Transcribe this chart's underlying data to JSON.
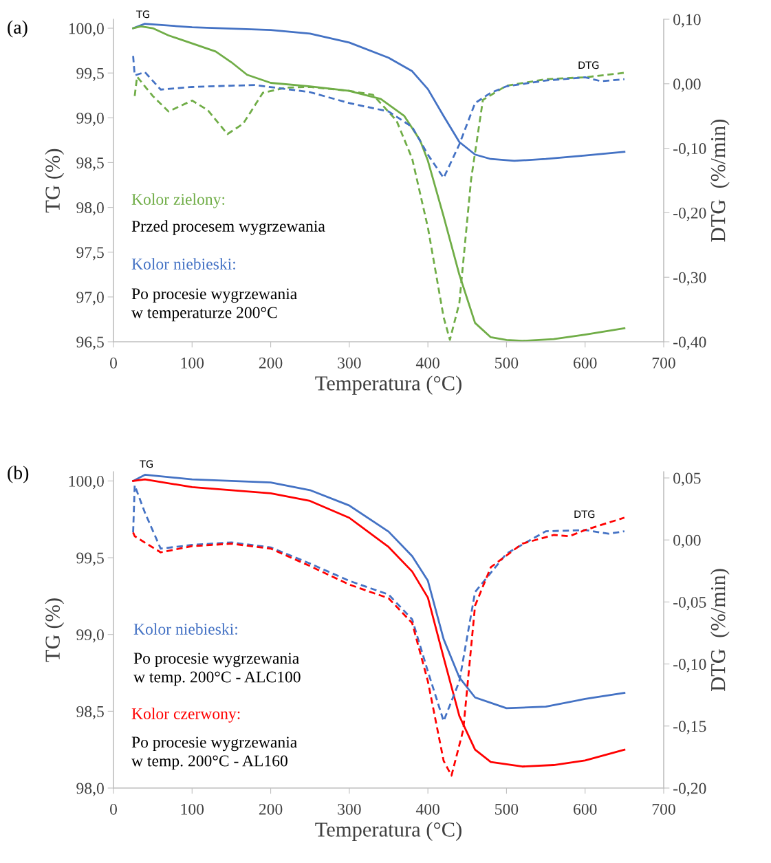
{
  "chart_data": [
    {
      "type": "line",
      "xlabel": "Temperatura (°C)",
      "ylabel": "TG (%)",
      "y2label": "DTG  (%/min)",
      "xlim": [
        0,
        700
      ],
      "xticks": [
        0,
        100,
        200,
        300,
        400,
        500,
        600,
        700
      ],
      "ylim": [
        96.5,
        100.1
      ],
      "yticks": [
        {
          "value": 96.5,
          "label": "96,5"
        },
        {
          "value": 97.0,
          "label": "97,0"
        },
        {
          "value": 97.5,
          "label": "97,5"
        },
        {
          "value": 98.0,
          "label": "98,0"
        },
        {
          "value": 98.5,
          "label": "98,5"
        },
        {
          "value": 99.0,
          "label": "99,0"
        },
        {
          "value": 99.5,
          "label": "99,5"
        },
        {
          "value": 100.0,
          "label": "100,0"
        }
      ],
      "y2lim": [
        -0.4,
        0.1
      ],
      "y2ticks": [
        {
          "value": -0.4,
          "label": "-0,40"
        },
        {
          "value": -0.3,
          "label": "-0,30"
        },
        {
          "value": -0.2,
          "label": "-0,20"
        },
        {
          "value": -0.1,
          "label": "-0,10"
        },
        {
          "value": 0.0,
          "label": "0,00"
        },
        {
          "value": 0.1,
          "label": "0,10"
        }
      ],
      "grid": false,
      "legend": false,
      "annotations": [
        "(a)",
        "TG",
        "DTG",
        "Kolor zielony:",
        "Przed procesem wygrzewania",
        "Kolor niebieski:",
        "Po procesie wygrzewania\nw temperaturze 200°C"
      ],
      "series": [
        {
          "color": "#4472c4",
          "line_style": "solid",
          "x": [
            25,
            40,
            100,
            200,
            250,
            300,
            350,
            380,
            400,
            420,
            440,
            460,
            480,
            510,
            550,
            600,
            650
          ],
          "values": [
            100.0,
            100.05,
            100.01,
            99.98,
            99.94,
            99.84,
            99.67,
            99.52,
            99.32,
            99.02,
            98.73,
            98.59,
            98.54,
            98.52,
            98.54,
            98.58,
            98.62
          ]
        },
        {
          "color": "#70ad47",
          "line_style": "solid",
          "x": [
            25,
            35,
            50,
            70,
            100,
            130,
            150,
            170,
            200,
            250,
            300,
            340,
            370,
            390,
            400,
            420,
            440,
            460,
            480,
            500,
            520,
            560,
            600,
            650
          ],
          "values": [
            100.0,
            100.02,
            100.0,
            99.92,
            99.83,
            99.74,
            99.62,
            99.48,
            99.39,
            99.35,
            99.3,
            99.21,
            99.02,
            98.75,
            98.52,
            97.9,
            97.25,
            96.71,
            96.55,
            96.52,
            96.51,
            96.53,
            96.58,
            96.65
          ]
        },
        {
          "color": "#70ad47",
          "line_style": "dashed",
          "axis": "y2",
          "x": [
            27,
            30,
            50,
            70,
            100,
            120,
            145,
            165,
            190,
            220,
            250,
            300,
            330,
            360,
            380,
            400,
            420,
            428,
            440,
            455,
            470,
            500,
            550,
            600,
            650
          ],
          "values": [
            -0.019,
            0.011,
            -0.019,
            -0.043,
            -0.026,
            -0.041,
            -0.078,
            -0.062,
            -0.014,
            -0.006,
            -0.005,
            -0.011,
            -0.017,
            -0.057,
            -0.116,
            -0.223,
            -0.362,
            -0.397,
            -0.34,
            -0.148,
            -0.025,
            -0.003,
            0.007,
            0.01,
            0.017
          ]
        },
        {
          "color": "#4472c4",
          "line_style": "dashed",
          "axis": "y2",
          "x": [
            25,
            27,
            40,
            60,
            100,
            150,
            180,
            250,
            300,
            350,
            380,
            400,
            420,
            440,
            460,
            480,
            500,
            550,
            600,
            620,
            650
          ],
          "values": [
            0.043,
            0.013,
            0.018,
            -0.009,
            -0.005,
            -0.003,
            -0.002,
            -0.013,
            -0.03,
            -0.043,
            -0.067,
            -0.11,
            -0.146,
            -0.094,
            -0.03,
            -0.014,
            -0.004,
            0.005,
            0.01,
            0.004,
            0.007
          ]
        }
      ]
    },
    {
      "type": "line",
      "xlabel": "Temperatura (°C)",
      "ylabel": "TG (%)",
      "y2label": "DTG  (%/min)",
      "xlim": [
        0,
        700
      ],
      "xticks": [
        0,
        100,
        200,
        300,
        400,
        500,
        600,
        700
      ],
      "ylim": [
        98.0,
        100.06
      ],
      "yticks": [
        {
          "value": 98.0,
          "label": "98,0"
        },
        {
          "value": 98.5,
          "label": "98,5"
        },
        {
          "value": 99.0,
          "label": "99,0"
        },
        {
          "value": 99.5,
          "label": "99,5"
        },
        {
          "value": 100.0,
          "label": "100,0"
        }
      ],
      "y2lim": [
        -0.2,
        0.055
      ],
      "y2ticks": [
        {
          "value": -0.2,
          "label": "-0,20"
        },
        {
          "value": -0.15,
          "label": "-0,15"
        },
        {
          "value": -0.1,
          "label": "-0,10"
        },
        {
          "value": -0.05,
          "label": "-0,05"
        },
        {
          "value": 0.0,
          "label": "0,00"
        },
        {
          "value": 0.05,
          "label": "0,05"
        }
      ],
      "grid": false,
      "legend": false,
      "annotations": [
        "(b)",
        "TG",
        "DTG",
        "Kolor niebieski:",
        "Po procesie wygrzewania\nw temp. 200°C - ALC100",
        "Kolor czerwony:",
        "Po procesie wygrzewania\nw temp. 200°C - AL160"
      ],
      "series": [
        {
          "color": "#4472c4",
          "line_style": "solid",
          "x": [
            25,
            40,
            100,
            200,
            250,
            300,
            350,
            380,
            400,
            420,
            440,
            460,
            500,
            550,
            600,
            650
          ],
          "values": [
            100.0,
            100.04,
            100.01,
            99.99,
            99.94,
            99.84,
            99.67,
            99.51,
            99.35,
            98.97,
            98.72,
            98.59,
            98.52,
            98.53,
            98.58,
            98.62
          ]
        },
        {
          "color": "#ff0000",
          "line_style": "solid",
          "x": [
            25,
            40,
            100,
            150,
            200,
            250,
            300,
            350,
            380,
            400,
            420,
            440,
            460,
            480,
            520,
            560,
            600,
            650
          ],
          "values": [
            100.0,
            100.01,
            99.96,
            99.94,
            99.92,
            99.87,
            99.76,
            99.57,
            99.41,
            99.24,
            98.85,
            98.47,
            98.25,
            98.17,
            98.14,
            98.15,
            98.18,
            98.25
          ]
        },
        {
          "color": "#4472c4",
          "line_style": "dashed",
          "axis": "y2",
          "x": [
            25,
            27,
            40,
            60,
            100,
            150,
            200,
            250,
            300,
            350,
            380,
            400,
            420,
            440,
            460,
            500,
            550,
            600,
            630,
            650
          ],
          "values": [
            0.006,
            0.044,
            0.022,
            -0.007,
            -0.004,
            -0.002,
            -0.006,
            -0.019,
            -0.033,
            -0.044,
            -0.064,
            -0.106,
            -0.146,
            -0.114,
            -0.042,
            -0.011,
            0.007,
            0.008,
            0.005,
            0.007
          ]
        },
        {
          "color": "#ff0000",
          "line_style": "dashed",
          "axis": "y2",
          "x": [
            25,
            27,
            60,
            100,
            150,
            200,
            250,
            300,
            350,
            380,
            400,
            420,
            430,
            445,
            460,
            480,
            520,
            560,
            580,
            600,
            650
          ],
          "values": [
            0.006,
            0.003,
            -0.01,
            -0.005,
            -0.003,
            -0.007,
            -0.021,
            -0.036,
            -0.047,
            -0.067,
            -0.114,
            -0.178,
            -0.19,
            -0.153,
            -0.053,
            -0.022,
            -0.003,
            0.004,
            0.003,
            0.008,
            0.018
          ]
        }
      ]
    }
  ]
}
